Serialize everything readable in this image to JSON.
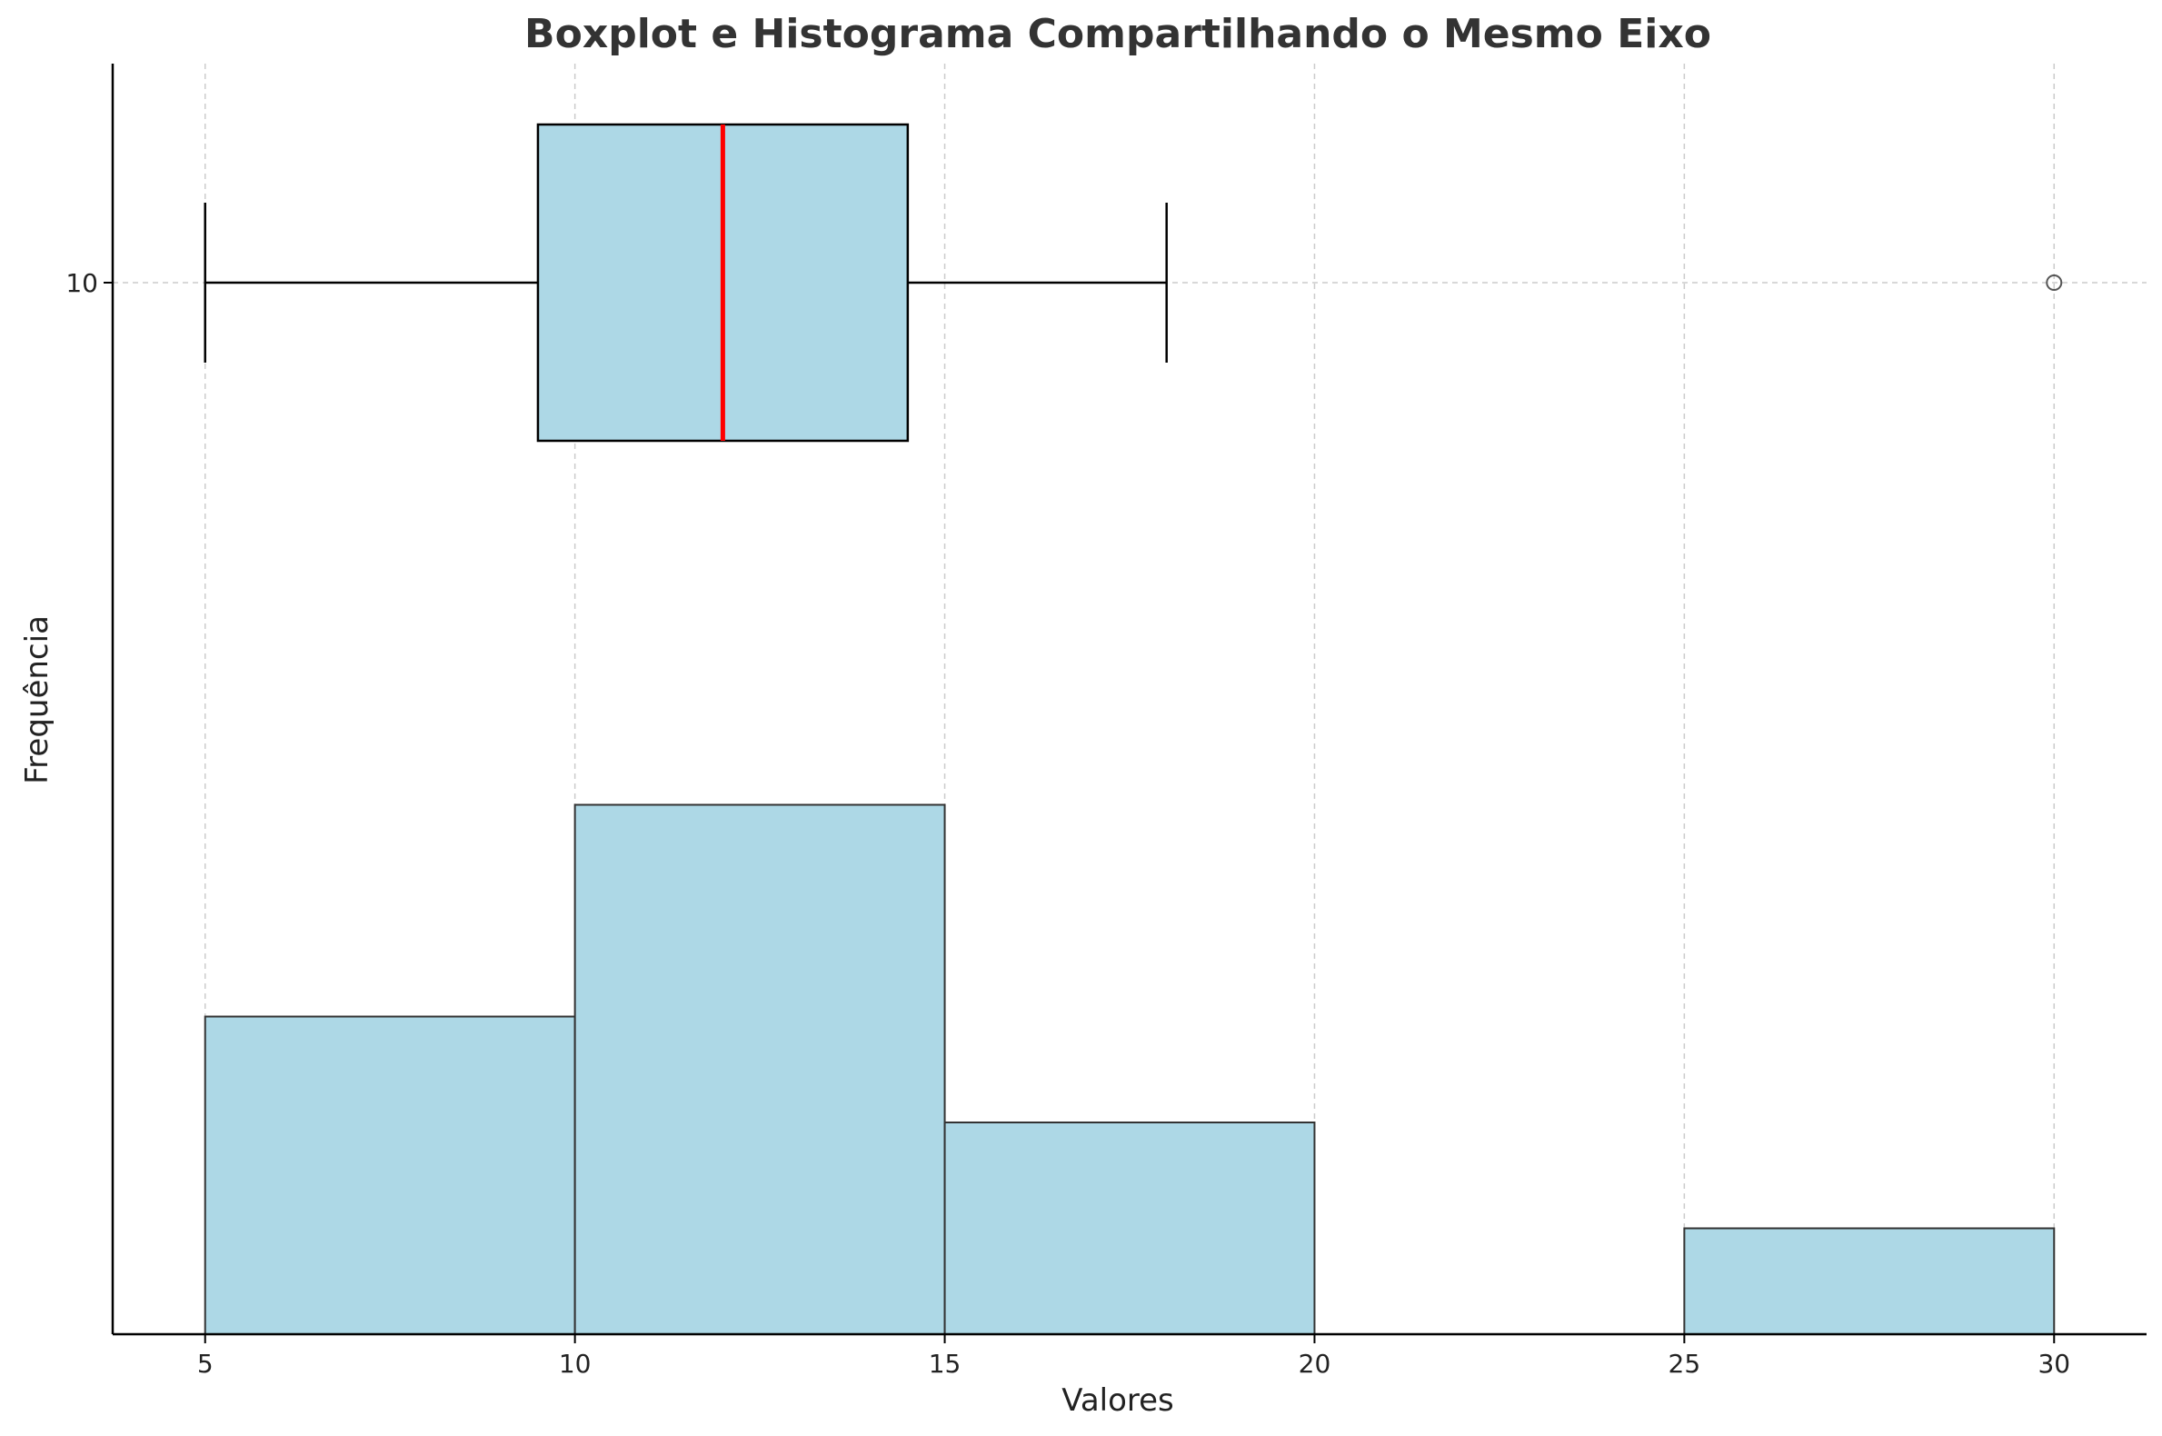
{
  "chart_data": {
    "type": "boxplot+histogram",
    "title": "Boxplot e Histograma Compartilhando o Mesmo Eixo",
    "xlabel": "Valores",
    "ylabel": "Frequência",
    "xlim": [
      3.75,
      31.25
    ],
    "xticks": [
      5,
      10,
      15,
      20,
      25,
      30
    ],
    "grid": true,
    "histogram": {
      "bin_edges": [
        5,
        10,
        15,
        20,
        25,
        30
      ],
      "counts": [
        3,
        5,
        2,
        0,
        1
      ],
      "ylim": [
        0,
        12
      ],
      "color": "#add8e6",
      "edge_color": "#333333"
    },
    "boxplot": {
      "position": 10,
      "yticks": [
        10
      ],
      "whisker_low": 5,
      "q1": 9.5,
      "median": 12,
      "q3": 14.5,
      "whisker_high": 18,
      "outliers": [
        30
      ],
      "box_color": "#add8e6",
      "median_color": "#ff0000"
    }
  }
}
